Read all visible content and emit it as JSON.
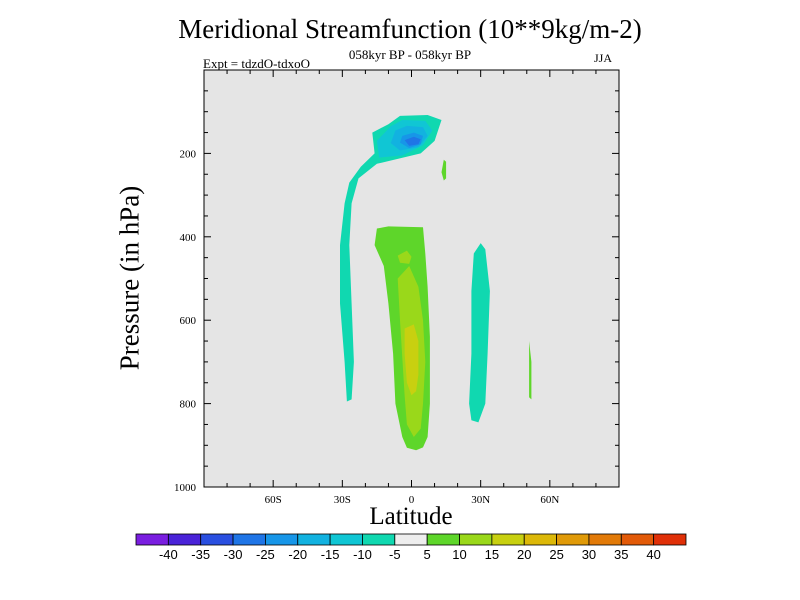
{
  "chart_data": {
    "type": "filled-contour",
    "title": "Meridional Streamfunction (10**9kg/m-2)",
    "subtitle": "058kyr BP - 058kyr BP",
    "left_string": "Expt = tdzdO-tdxoO",
    "right_string": "JJA",
    "xlabel": "Latitude",
    "ylabel": "Pressure (in hPa)",
    "x_axis": {
      "range": [
        -90,
        90
      ],
      "ticks": [
        -60,
        -30,
        0,
        30,
        60
      ],
      "tick_labels": [
        "60S",
        "30S",
        "0",
        "30N",
        "60N"
      ]
    },
    "y_axis": {
      "range": [
        1000,
        0
      ],
      "reversed": true,
      "ticks": [
        200,
        400,
        600,
        800,
        1000
      ],
      "tick_labels": [
        "200",
        "400",
        "600",
        "800",
        "1000"
      ]
    },
    "background_color": "#e5e5e5",
    "colorbar": {
      "levels": [
        -40,
        -35,
        -30,
        -25,
        -20,
        -15,
        -10,
        -5,
        5,
        10,
        15,
        20,
        25,
        30,
        35,
        40
      ],
      "labels": [
        "-40",
        "-35",
        "-30",
        "-25",
        "-20",
        "-15",
        "-10",
        "-5",
        "5",
        "10",
        "15",
        "20",
        "25",
        "30",
        "35",
        "40"
      ],
      "colors": [
        "#7a1ee0",
        "#4a23d8",
        "#2a4fe0",
        "#1f75e6",
        "#1796e8",
        "#12b2e0",
        "#10c6d4",
        "#10d8b0",
        "#eeeeee",
        "#5ed62a",
        "#9ad81a",
        "#c8d010",
        "#dcb808",
        "#e09a08",
        "#e27a08",
        "#e25a08",
        "#e03008"
      ]
    },
    "regions": [
      {
        "name": "SH upper-level cell",
        "value_range": [
          -10,
          -5
        ],
        "color": "#10d8b0",
        "points": [
          [
            -10,
            130
          ],
          [
            -5,
            110
          ],
          [
            7,
            108
          ],
          [
            13,
            120
          ],
          [
            10,
            170
          ],
          [
            4,
            200
          ],
          [
            -15,
            225
          ],
          [
            -23,
            260
          ],
          [
            -26,
            320
          ],
          [
            -27,
            420
          ],
          [
            -26,
            560
          ],
          [
            -25,
            700
          ],
          [
            -26,
            790
          ],
          [
            -28,
            795
          ],
          [
            -29,
            700
          ],
          [
            -31,
            560
          ],
          [
            -31,
            420
          ],
          [
            -29,
            320
          ],
          [
            -27,
            270
          ],
          [
            -22,
            232
          ],
          [
            -16,
            200
          ],
          [
            -17,
            150
          ]
        ]
      },
      {
        "name": "SH upper-level cell -10",
        "value_range": [
          -15,
          -10
        ],
        "color": "#10c6d4",
        "points": [
          [
            -9,
            135
          ],
          [
            -4,
            120
          ],
          [
            6,
            122
          ],
          [
            9,
            145
          ],
          [
            5,
            180
          ],
          [
            -4,
            205
          ],
          [
            -14,
            210
          ],
          [
            -15,
            170
          ]
        ]
      },
      {
        "name": "SH upper-level cell -15",
        "value_range": [
          -20,
          -15
        ],
        "color": "#12b2e0",
        "points": [
          [
            -7,
            145
          ],
          [
            -2,
            134
          ],
          [
            5,
            137
          ],
          [
            7,
            158
          ],
          [
            3,
            185
          ],
          [
            -5,
            193
          ],
          [
            -9,
            175
          ]
        ]
      },
      {
        "name": "SH upper-level cell -20",
        "value_range": [
          -25,
          -20
        ],
        "color": "#1796e8",
        "points": [
          [
            -4,
            158
          ],
          [
            1,
            150
          ],
          [
            5,
            158
          ],
          [
            4,
            178
          ],
          [
            -1,
            187
          ],
          [
            -5,
            174
          ]
        ]
      },
      {
        "name": "SH upper-level cell -25",
        "value_range": [
          -30,
          -25
        ],
        "color": "#1f75e6",
        "points": [
          [
            -3,
            168
          ],
          [
            1,
            160
          ],
          [
            4,
            166
          ],
          [
            3,
            178
          ],
          [
            -1,
            182
          ]
        ]
      },
      {
        "name": "equatorial positive cell",
        "value_range": [
          5,
          10
        ],
        "color": "#5ed62a",
        "points": [
          [
            -15,
            380
          ],
          [
            -10,
            375
          ],
          [
            5,
            377
          ],
          [
            6,
            440
          ],
          [
            7,
            520
          ],
          [
            8,
            640
          ],
          [
            8,
            800
          ],
          [
            7,
            880
          ],
          [
            5,
            905
          ],
          [
            2,
            912
          ],
          [
            -2,
            906
          ],
          [
            -4,
            880
          ],
          [
            -7,
            800
          ],
          [
            -8,
            680
          ],
          [
            -10,
            560
          ],
          [
            -12,
            470
          ],
          [
            -16,
            420
          ]
        ]
      },
      {
        "name": "equatorial positive cell 10",
        "value_range": [
          10,
          15
        ],
        "color": "#9ad81a",
        "points": [
          [
            -6,
            500
          ],
          [
            -1,
            470
          ],
          [
            3,
            520
          ],
          [
            5,
            600
          ],
          [
            6,
            700
          ],
          [
            5,
            800
          ],
          [
            4,
            860
          ],
          [
            1,
            880
          ],
          [
            -2,
            850
          ],
          [
            -3,
            780
          ],
          [
            -4,
            690
          ],
          [
            -5,
            600
          ]
        ]
      },
      {
        "name": "equatorial positive cell 10b",
        "value_range": [
          10,
          15
        ],
        "color": "#9ad81a",
        "points": [
          [
            -6,
            445
          ],
          [
            -2,
            433
          ],
          [
            0,
            448
          ],
          [
            -1,
            465
          ],
          [
            -5,
            462
          ]
        ]
      },
      {
        "name": "equatorial positive cell 15",
        "value_range": [
          15,
          20
        ],
        "color": "#c8d010",
        "points": [
          [
            -3,
            620
          ],
          [
            1,
            610
          ],
          [
            3,
            650
          ],
          [
            3,
            730
          ],
          [
            2,
            770
          ],
          [
            0,
            780
          ],
          [
            -2,
            750
          ],
          [
            -3,
            680
          ]
        ]
      },
      {
        "name": "NH mid-level cell",
        "value_range": [
          -10,
          -5
        ],
        "color": "#10d8b0",
        "points": [
          [
            30,
            415
          ],
          [
            32,
            430
          ],
          [
            34,
            530
          ],
          [
            33,
            680
          ],
          [
            32,
            800
          ],
          [
            29,
            845
          ],
          [
            26,
            840
          ],
          [
            25,
            800
          ],
          [
            26,
            680
          ],
          [
            26,
            530
          ],
          [
            27,
            440
          ]
        ]
      },
      {
        "name": "NH upper small positive",
        "value_range": [
          5,
          10
        ],
        "color": "#5ed62a",
        "points": [
          [
            14,
            215
          ],
          [
            15,
            220
          ],
          [
            15,
            260
          ],
          [
            14,
            265
          ],
          [
            13,
            245
          ]
        ]
      },
      {
        "name": "NH 52N positive strip",
        "value_range": [
          5,
          10
        ],
        "color": "#5ed62a",
        "points": [
          [
            51,
            650
          ],
          [
            52,
            700
          ],
          [
            52,
            790
          ],
          [
            51,
            785
          ],
          [
            51,
            700
          ]
        ]
      }
    ]
  }
}
